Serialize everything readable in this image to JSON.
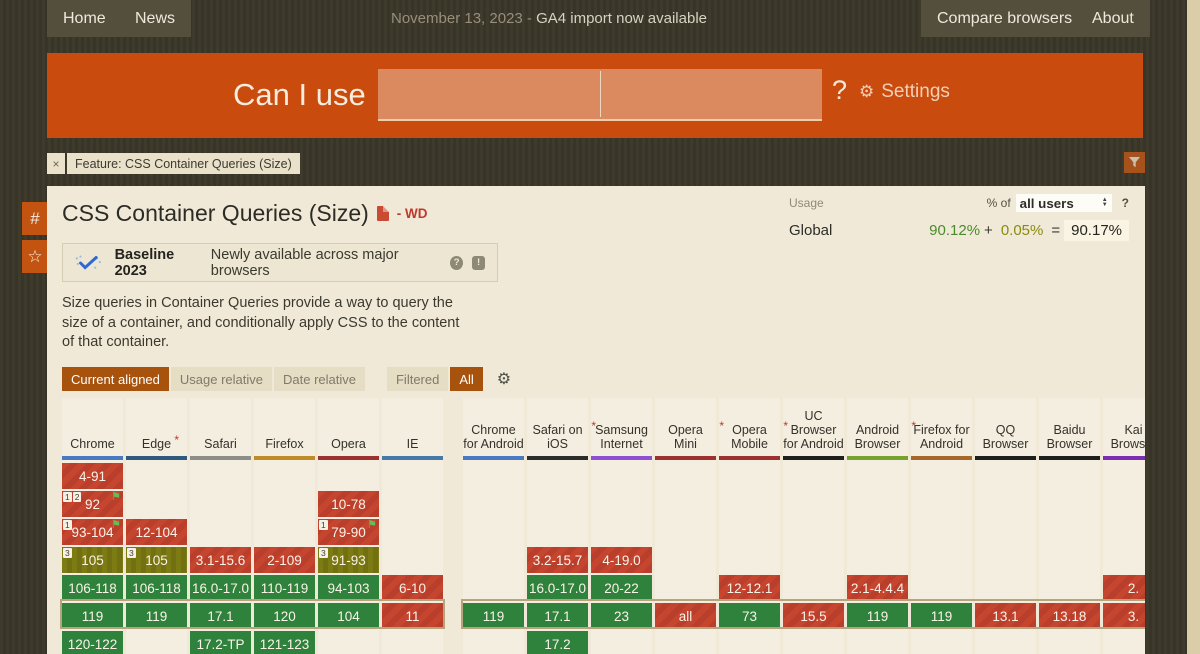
{
  "topbar": {
    "nav_left": [
      {
        "label": "Home"
      },
      {
        "label": "News"
      }
    ],
    "date_prefix": "November 13, 2023 - ",
    "announcement": "GA4 import now available",
    "nav_right": [
      {
        "label": "Compare browsers"
      },
      {
        "label": "About"
      }
    ]
  },
  "header": {
    "logo": "Can I use",
    "search_value": "",
    "search_value_secondary": "",
    "question_mark": "?",
    "settings_label": "Settings",
    "gear_icon": "⚙"
  },
  "feature_tag": {
    "close": "×",
    "label": "Feature: CSS Container Queries (Size)"
  },
  "side": {
    "permalink": "#",
    "favorite": "☆"
  },
  "main": {
    "title": "CSS Container Queries (Size)",
    "spec_status": "- WD",
    "usage": {
      "label": "Usage",
      "percent_of": "% of",
      "select_value": "all users",
      "help": "?",
      "region": "Global",
      "supported_pct": "90.12%",
      "plus": "+",
      "partial_pct": "0.05%",
      "equals": "=",
      "total_pct": "90.17%"
    },
    "baseline": {
      "title": "Baseline 2023",
      "subtitle": "Newly available across major browsers",
      "help_icon": "?",
      "feedback_icon": "!"
    },
    "description": "Size queries in Container Queries provide a way to query the size of a container, and conditionally apply CSS to the content of that container.",
    "controls": [
      {
        "label": "Current aligned",
        "active": true
      },
      {
        "label": "Usage relative",
        "active": false
      },
      {
        "label": "Date relative",
        "active": false
      }
    ],
    "filter_controls": [
      {
        "label": "Filtered",
        "active": false
      },
      {
        "label": "All",
        "active": true
      }
    ],
    "controls_gear_icon": "⚙"
  },
  "support_table": {
    "row_count": 7,
    "current_row": 5,
    "flag_glyph": "⚑",
    "desktop": [
      {
        "name": "Chrome",
        "bar": "#4a79c4",
        "asterisk": false,
        "cells": [
          {
            "row": 0,
            "text": "4-91",
            "type": "red"
          },
          {
            "row": 1,
            "text": "92",
            "type": "red",
            "badges": [
              "1",
              "2"
            ],
            "flag": true
          },
          {
            "row": 2,
            "text": "93-104",
            "type": "red",
            "badges": [
              "1"
            ],
            "flag": true
          },
          {
            "row": 3,
            "text": "105",
            "type": "olive",
            "badges": [
              "3"
            ]
          },
          {
            "row": 4,
            "text": "106-118",
            "type": "green"
          },
          {
            "row": 5,
            "text": "119",
            "type": "green"
          },
          {
            "row": 6,
            "text": "120-122",
            "type": "green"
          }
        ]
      },
      {
        "name": "Edge",
        "bar": "#30597f",
        "asterisk": true,
        "cells": [
          {
            "row": 2,
            "text": "12-104",
            "type": "red"
          },
          {
            "row": 3,
            "text": "105",
            "type": "olive",
            "badges": [
              "3"
            ]
          },
          {
            "row": 4,
            "text": "106-118",
            "type": "green"
          },
          {
            "row": 5,
            "text": "119",
            "type": "green"
          }
        ]
      },
      {
        "name": "Safari",
        "bar": "#8e8d88",
        "asterisk": false,
        "cells": [
          {
            "row": 3,
            "text": "3.1-15.6",
            "type": "red"
          },
          {
            "row": 4,
            "text": "16.0-17.0",
            "type": "green"
          },
          {
            "row": 5,
            "text": "17.1",
            "type": "green"
          },
          {
            "row": 6,
            "text": "17.2-TP",
            "type": "green"
          }
        ]
      },
      {
        "name": "Firefox",
        "bar": "#bf8a28",
        "asterisk": false,
        "cells": [
          {
            "row": 3,
            "text": "2-109",
            "type": "red"
          },
          {
            "row": 4,
            "text": "110-119",
            "type": "green"
          },
          {
            "row": 5,
            "text": "120",
            "type": "green"
          },
          {
            "row": 6,
            "text": "121-123",
            "type": "green"
          }
        ]
      },
      {
        "name": "Opera",
        "bar": "#9d3030",
        "asterisk": false,
        "cells": [
          {
            "row": 1,
            "text": "10-78",
            "type": "red"
          },
          {
            "row": 2,
            "text": "79-90",
            "type": "red",
            "badges": [
              "1"
            ],
            "flag": true
          },
          {
            "row": 3,
            "text": "91-93",
            "type": "olive",
            "badges": [
              "3"
            ]
          },
          {
            "row": 4,
            "text": "94-103",
            "type": "green"
          },
          {
            "row": 5,
            "text": "104",
            "type": "green"
          }
        ]
      },
      {
        "name": "IE",
        "bar": "#4679a8",
        "asterisk": false,
        "cells": [
          {
            "row": 4,
            "text": "6-10",
            "type": "red"
          },
          {
            "row": 5,
            "text": "11",
            "type": "red"
          }
        ]
      }
    ],
    "mobile": [
      {
        "name": "Chrome for Android",
        "bar": "#4a79c4",
        "asterisk": false,
        "cells": [
          {
            "row": 5,
            "text": "119",
            "type": "green"
          }
        ]
      },
      {
        "name": "Safari on iOS",
        "bar": "#2c2c29",
        "asterisk": true,
        "cells": [
          {
            "row": 3,
            "text": "3.2-15.7",
            "type": "red"
          },
          {
            "row": 4,
            "text": "16.0-17.0",
            "type": "green"
          },
          {
            "row": 5,
            "text": "17.1",
            "type": "green"
          },
          {
            "row": 6,
            "text": "17.2",
            "type": "green"
          }
        ]
      },
      {
        "name": "Samsung Internet",
        "bar": "#8f4fd1",
        "asterisk": false,
        "cells": [
          {
            "row": 3,
            "text": "4-19.0",
            "type": "red"
          },
          {
            "row": 4,
            "text": "20-22",
            "type": "green"
          },
          {
            "row": 5,
            "text": "23",
            "type": "green"
          }
        ]
      },
      {
        "name": "Opera Mini",
        "bar": "#9d3030",
        "asterisk": true,
        "cells": [
          {
            "row": 5,
            "text": "all",
            "type": "red"
          }
        ]
      },
      {
        "name": "Opera Mobile",
        "bar": "#9d3030",
        "asterisk": true,
        "cells": [
          {
            "row": 4,
            "text": "12-12.1",
            "type": "red"
          },
          {
            "row": 5,
            "text": "73",
            "type": "green"
          }
        ]
      },
      {
        "name": "UC Browser for Android",
        "bar": "#1e1e1c",
        "asterisk": false,
        "cells": [
          {
            "row": 5,
            "text": "15.5",
            "type": "red"
          }
        ]
      },
      {
        "name": "Android Browser",
        "bar": "#76a22e",
        "asterisk": true,
        "cells": [
          {
            "row": 4,
            "text": "2.1-4.4.4",
            "type": "red"
          },
          {
            "row": 5,
            "text": "119",
            "type": "green"
          }
        ]
      },
      {
        "name": "Firefox for Android",
        "bar": "#a7682c",
        "asterisk": false,
        "cells": [
          {
            "row": 5,
            "text": "119",
            "type": "green"
          }
        ]
      },
      {
        "name": "QQ Browser",
        "bar": "#1e1e1c",
        "asterisk": false,
        "cells": [
          {
            "row": 5,
            "text": "13.1",
            "type": "red"
          }
        ]
      },
      {
        "name": "Baidu Browser",
        "bar": "#1e1e1c",
        "asterisk": false,
        "cells": [
          {
            "row": 5,
            "text": "13.18",
            "type": "red"
          }
        ]
      },
      {
        "name": "Kai Browser",
        "bar": "#7a2fb2",
        "asterisk": false,
        "cells": [
          {
            "row": 4,
            "text": "2.",
            "type": "red"
          },
          {
            "row": 5,
            "text": "3.",
            "type": "red"
          }
        ]
      }
    ]
  }
}
